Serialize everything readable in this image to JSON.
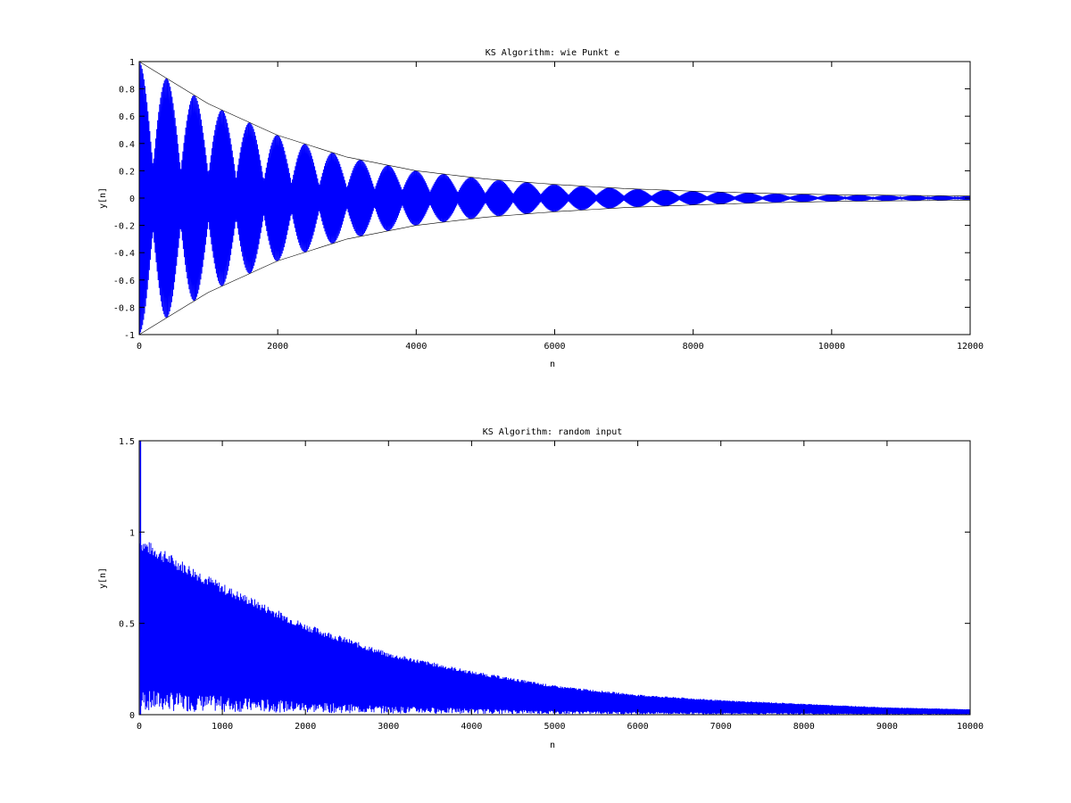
{
  "chart_data": [
    {
      "type": "line",
      "title": "KS Algorithm: wie Punkt e",
      "xlabel": "n",
      "ylabel": "y[n]",
      "xlim": [
        0,
        12000
      ],
      "ylim": [
        -1,
        1
      ],
      "xticks": [
        "0",
        "2000",
        "4000",
        "6000",
        "8000",
        "10000",
        "12000"
      ],
      "yticks": [
        "-1",
        "-0.8",
        "-0.6",
        "-0.4",
        "-0.2",
        "0",
        "0.2",
        "0.4",
        "0.6",
        "0.8",
        "1"
      ],
      "grid": false,
      "series": [
        {
          "color": "#0000ff",
          "x": [
            0,
            1000,
            2000,
            3000,
            4000,
            5000,
            6000,
            7000,
            8000,
            9000,
            10000,
            11000,
            12000
          ],
          "envelope": [
            1.0,
            0.69,
            0.46,
            0.3,
            0.2,
            0.14,
            0.1,
            0.07,
            0.05,
            0.035,
            0.025,
            0.02,
            0.015
          ],
          "beat_period": 400
        }
      ]
    },
    {
      "type": "line",
      "title": "KS Algorithm: random input",
      "xlabel": "n",
      "ylabel": "y[n]",
      "xlim": [
        0,
        10000
      ],
      "ylim": [
        0,
        1.5
      ],
      "xticks": [
        "0",
        "1000",
        "2000",
        "3000",
        "4000",
        "5000",
        "6000",
        "7000",
        "8000",
        "9000",
        "10000"
      ],
      "yticks": [
        "0",
        "0.5",
        "1",
        "1.5"
      ],
      "grid": false,
      "series": [
        {
          "color": "#0000ff",
          "x": [
            0,
            1000,
            2000,
            3000,
            4000,
            5000,
            6000,
            7000,
            8000,
            9000,
            10000
          ],
          "envelope": [
            0.98,
            0.72,
            0.5,
            0.34,
            0.24,
            0.16,
            0.11,
            0.08,
            0.06,
            0.04,
            0.03
          ],
          "initial_spike": 1.5
        }
      ]
    }
  ]
}
